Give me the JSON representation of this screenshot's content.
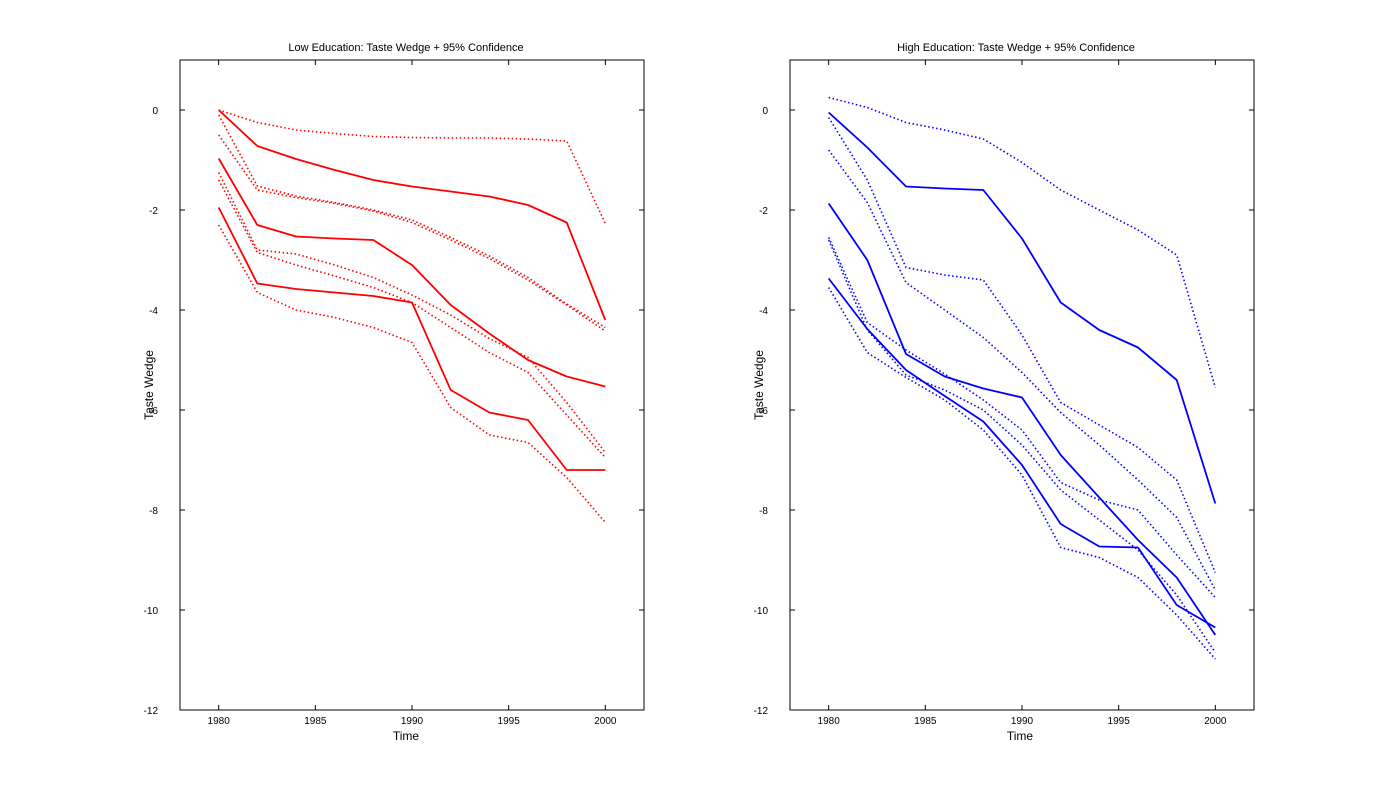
{
  "chart_data": [
    {
      "type": "line",
      "title": "Low Education: Taste Wedge + 95% Confidence",
      "xlabel": "Time",
      "ylabel": "Taste Wedge",
      "xlim": [
        1978,
        2002
      ],
      "ylim": [
        -12,
        1
      ],
      "xticks": [
        1980,
        1985,
        1990,
        1995,
        2000
      ],
      "yticks": [
        0,
        -2,
        -4,
        -6,
        -8,
        -10,
        -12
      ],
      "color": "#ff0000",
      "grid": false,
      "x": [
        1980,
        1982,
        1984,
        1986,
        1988,
        1990,
        1992,
        1994,
        1996,
        1998,
        2000
      ],
      "series": [
        {
          "style": "solid",
          "values": [
            0.0,
            -0.72,
            -0.98,
            -1.2,
            -1.4,
            -1.53,
            -1.63,
            -1.73,
            -1.9,
            -2.25,
            -4.2
          ]
        },
        {
          "style": "dotted",
          "values": [
            0.0,
            -0.25,
            -0.4,
            -0.47,
            -0.53,
            -0.55,
            -0.56,
            -0.56,
            -0.58,
            -0.62,
            -2.27
          ]
        },
        {
          "style": "dotted",
          "values": [
            -0.1,
            -1.52,
            -1.72,
            -1.85,
            -2.0,
            -2.2,
            -2.55,
            -2.92,
            -3.35,
            -3.88,
            -4.35
          ]
        },
        {
          "style": "dotted",
          "values": [
            -0.5,
            -1.6,
            -1.75,
            -1.87,
            -2.02,
            -2.25,
            -2.6,
            -2.97,
            -3.4,
            -3.9,
            -4.42
          ]
        },
        {
          "style": "solid",
          "values": [
            -0.97,
            -2.3,
            -2.53,
            -2.57,
            -2.6,
            -3.1,
            -3.9,
            -4.47,
            -5.0,
            -5.33,
            -5.53
          ]
        },
        {
          "style": "dotted",
          "values": [
            -1.25,
            -2.8,
            -2.88,
            -3.1,
            -3.35,
            -3.7,
            -4.1,
            -4.57,
            -4.95,
            -5.85,
            -6.85
          ]
        },
        {
          "style": "dotted",
          "values": [
            -1.4,
            -2.85,
            -3.1,
            -3.32,
            -3.55,
            -3.85,
            -4.35,
            -4.85,
            -5.25,
            -6.1,
            -6.95
          ]
        },
        {
          "style": "solid",
          "values": [
            -1.95,
            -3.47,
            -3.58,
            -3.65,
            -3.72,
            -3.85,
            -5.6,
            -6.05,
            -6.2,
            -7.2,
            -7.2
          ]
        },
        {
          "style": "dotted",
          "values": [
            -2.3,
            -3.65,
            -4.0,
            -4.15,
            -4.35,
            -4.65,
            -5.95,
            -6.5,
            -6.65,
            -7.35,
            -8.25
          ]
        }
      ]
    },
    {
      "type": "line",
      "title": "High Education: Taste Wedge + 95% Confidence",
      "xlabel": "Time",
      "ylabel": "Taste Wedge",
      "xlim": [
        1978,
        2002
      ],
      "ylim": [
        -12,
        1
      ],
      "xticks": [
        1980,
        1985,
        1990,
        1995,
        2000
      ],
      "yticks": [
        0,
        -2,
        -4,
        -6,
        -8,
        -10,
        -12
      ],
      "color": "#0000ff",
      "grid": false,
      "x": [
        1980,
        1982,
        1984,
        1986,
        1988,
        1990,
        1992,
        1994,
        1996,
        1998,
        2000
      ],
      "series": [
        {
          "style": "solid",
          "values": [
            -0.05,
            -0.75,
            -1.53,
            -1.57,
            -1.6,
            -2.57,
            -3.85,
            -4.4,
            -4.75,
            -5.4,
            -7.87
          ]
        },
        {
          "style": "dotted",
          "values": [
            0.25,
            0.05,
            -0.25,
            -0.4,
            -0.58,
            -1.05,
            -1.6,
            -2.0,
            -2.4,
            -2.9,
            -5.55
          ]
        },
        {
          "style": "dotted",
          "values": [
            -0.15,
            -1.4,
            -3.15,
            -3.3,
            -3.4,
            -4.5,
            -5.85,
            -6.3,
            -6.75,
            -7.4,
            -9.25
          ]
        },
        {
          "style": "dotted",
          "values": [
            -0.8,
            -1.85,
            -3.45,
            -4.0,
            -4.55,
            -5.25,
            -6.05,
            -6.7,
            -7.4,
            -8.15,
            -9.6
          ]
        },
        {
          "style": "solid",
          "values": [
            -1.87,
            -3.0,
            -4.88,
            -5.33,
            -5.57,
            -5.75,
            -6.9,
            -7.75,
            -8.6,
            -9.35,
            -10.5
          ]
        },
        {
          "style": "dotted",
          "values": [
            -2.55,
            -4.25,
            -4.8,
            -5.28,
            -5.8,
            -6.4,
            -7.45,
            -7.8,
            -8.0,
            -8.9,
            -9.75
          ]
        },
        {
          "style": "dotted",
          "values": [
            -2.6,
            -4.4,
            -5.3,
            -5.6,
            -6.0,
            -6.7,
            -7.6,
            -8.2,
            -8.8,
            -9.7,
            -10.85
          ]
        },
        {
          "style": "solid",
          "values": [
            -3.37,
            -4.38,
            -5.2,
            -5.72,
            -6.23,
            -7.1,
            -8.28,
            -8.73,
            -8.75,
            -9.9,
            -10.35
          ]
        },
        {
          "style": "dotted",
          "values": [
            -3.55,
            -4.85,
            -5.35,
            -5.8,
            -6.4,
            -7.3,
            -8.75,
            -8.95,
            -9.35,
            -10.1,
            -10.98
          ]
        }
      ]
    }
  ]
}
